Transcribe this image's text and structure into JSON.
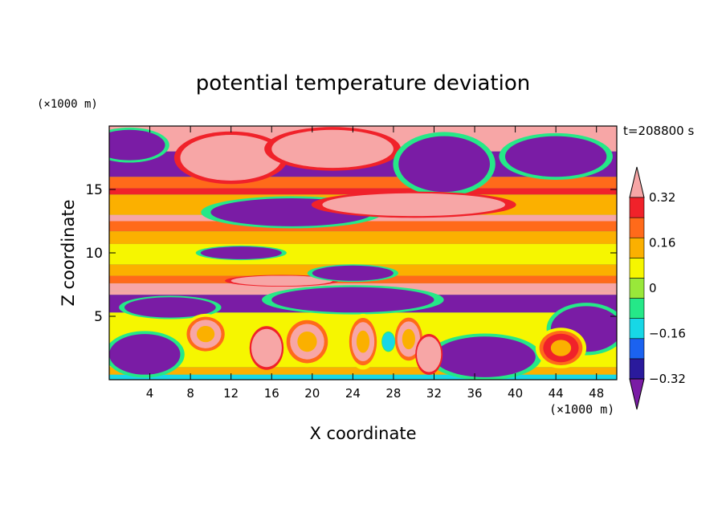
{
  "chart_data": {
    "type": "heatmap",
    "title": "potential temperature deviation",
    "xlabel": "X coordinate",
    "ylabel": "Z coordinate",
    "x_unit": "(×1000 m)",
    "y_unit": "(×1000 m)",
    "time_label": "t=208800 s",
    "xlim": [
      0,
      50
    ],
    "ylim": [
      0,
      20
    ],
    "x_ticks": [
      "4",
      "8",
      "12",
      "16",
      "20",
      "24",
      "28",
      "32",
      "36",
      "40",
      "44",
      "48"
    ],
    "x_tick_values": [
      4,
      8,
      12,
      16,
      20,
      24,
      28,
      32,
      36,
      40,
      44,
      48
    ],
    "y_ticks": [
      "5",
      "10",
      "15"
    ],
    "y_tick_values": [
      5,
      10,
      15
    ],
    "colorbar": {
      "levels": [
        -0.4,
        -0.32,
        -0.24,
        -0.16,
        -0.08,
        0,
        0.08,
        0.16,
        0.24,
        0.32,
        0.4
      ],
      "labels": [
        "0.32",
        "0.16",
        "0",
        "−0.16",
        "−0.32"
      ],
      "label_values": [
        0.32,
        0.16,
        0,
        -0.16,
        -0.32
      ],
      "colors": [
        "#7a1ca5",
        "#2a1a9c",
        "#1b62f0",
        "#17d7e6",
        "#25e888",
        "#99e83a",
        "#f6f600",
        "#fbb000",
        "#ff6a1a",
        "#f0222a",
        "#f7a6a6"
      ]
    },
    "bands": [
      {
        "z": [
          0,
          0.4
        ],
        "value": -0.2
      },
      {
        "z": [
          0.4,
          1.0
        ],
        "value": 0.1
      },
      {
        "z": [
          1.0,
          5.3
        ],
        "value": 0.02
      },
      {
        "z": [
          5.3,
          6.7
        ],
        "value": -0.45
      },
      {
        "z": [
          6.7,
          7.0
        ],
        "value": 0.45
      },
      {
        "z": [
          7.0,
          7.6
        ],
        "value": 0.35
      },
      {
        "z": [
          7.6,
          8.2
        ],
        "value": 0.18
      },
      {
        "z": [
          8.2,
          9.1
        ],
        "value": 0.08
      },
      {
        "z": [
          9.1,
          10.7
        ],
        "value": 0.0
      },
      {
        "z": [
          10.7,
          11.7
        ],
        "value": 0.12
      },
      {
        "z": [
          11.7,
          12.5
        ],
        "value": 0.22
      },
      {
        "z": [
          12.5,
          13.0
        ],
        "value": 0.35
      },
      {
        "z": [
          13.0,
          14.6
        ],
        "value": 0.1
      },
      {
        "z": [
          14.6,
          15.1
        ],
        "value": 0.3
      },
      {
        "z": [
          15.1,
          16.0
        ],
        "value": 0.2
      },
      {
        "z": [
          16.0,
          18.0
        ],
        "value": -0.45
      },
      {
        "z": [
          18.0,
          20.0
        ],
        "value": 0.45
      }
    ],
    "features": [
      {
        "kind": "blob",
        "x": 2,
        "z": 18.5,
        "rx": 3.5,
        "rz": 1.2,
        "value": -0.45
      },
      {
        "kind": "blob",
        "x": 12,
        "z": 17.5,
        "rx": 5,
        "rz": 1.8,
        "value": 0.45
      },
      {
        "kind": "blob",
        "x": 22,
        "z": 18.2,
        "rx": 6,
        "rz": 1.5,
        "value": 0.45
      },
      {
        "kind": "blob",
        "x": 33,
        "z": 17.0,
        "rx": 4.5,
        "rz": 2.2,
        "value": -0.45
      },
      {
        "kind": "blob",
        "x": 44,
        "z": 17.6,
        "rx": 5,
        "rz": 1.6,
        "value": -0.45
      },
      {
        "kind": "blob",
        "x": 18,
        "z": 13.2,
        "rx": 8,
        "rz": 1.1,
        "value": -0.45
      },
      {
        "kind": "blob",
        "x": 30,
        "z": 13.8,
        "rx": 9,
        "rz": 0.9,
        "value": 0.45
      },
      {
        "kind": "blob",
        "x": 13,
        "z": 10.0,
        "rx": 4,
        "rz": 0.5,
        "value": -0.45
      },
      {
        "kind": "blob",
        "x": 17,
        "z": 7.8,
        "rx": 5,
        "rz": 0.4,
        "value": 0.45
      },
      {
        "kind": "blob",
        "x": 24,
        "z": 8.4,
        "rx": 4,
        "rz": 0.6,
        "value": -0.45
      },
      {
        "kind": "blob",
        "x": 24,
        "z": 6.3,
        "rx": 8,
        "rz": 1.0,
        "value": -0.45
      },
      {
        "kind": "blob",
        "x": 6,
        "z": 5.7,
        "rx": 4.5,
        "rz": 0.8,
        "value": -0.45
      },
      {
        "kind": "blob",
        "x": 47,
        "z": 4.0,
        "rx": 3.5,
        "rz": 1.8,
        "value": -0.45
      },
      {
        "kind": "blob",
        "x": 3.5,
        "z": 2.0,
        "rx": 3.5,
        "rz": 1.6,
        "value": -0.45
      },
      {
        "kind": "blob",
        "x": 37,
        "z": 1.8,
        "rx": 5,
        "rz": 1.6,
        "value": -0.45
      },
      {
        "kind": "ring",
        "x": 9.5,
        "z": 3.6,
        "rx": 2.2,
        "rz": 1.6,
        "value": 0.32
      },
      {
        "kind": "ring",
        "x": 19.5,
        "z": 3.0,
        "rx": 2.4,
        "rz": 2.0,
        "value": 0.32
      },
      {
        "kind": "ring",
        "x": 25,
        "z": 3.0,
        "rx": 1.6,
        "rz": 2.2,
        "value": 0.32
      },
      {
        "kind": "ring",
        "x": 29.5,
        "z": 3.2,
        "rx": 1.6,
        "rz": 2.0,
        "value": 0.32
      },
      {
        "kind": "ring",
        "x": 44.5,
        "z": 2.5,
        "rx": 2.5,
        "rz": 1.6,
        "value": 0.24
      },
      {
        "kind": "blob",
        "x": 27.5,
        "z": 3.0,
        "rx": 0.6,
        "rz": 0.7,
        "value": -0.2
      },
      {
        "kind": "blob",
        "x": 15.5,
        "z": 2.5,
        "rx": 1.5,
        "rz": 1.5,
        "value": 0.45
      },
      {
        "kind": "blob",
        "x": 31.5,
        "z": 2.0,
        "rx": 1.2,
        "rz": 1.4,
        "value": 0.45
      }
    ]
  }
}
